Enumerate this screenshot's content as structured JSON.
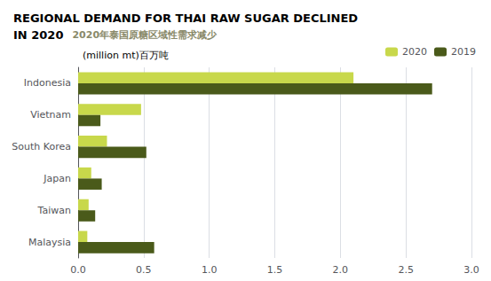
{
  "chart_data": {
    "type": "bar",
    "orientation": "horizontal",
    "title": "REGIONAL DEMAND FOR THAI RAW SUGAR DECLINED\nIN 2020",
    "subtitle": "(million mt)百万吨",
    "annotations": [
      {
        "text": "2020年泰国原糖区域性需求减少",
        "color": "#8a8a6a"
      }
    ],
    "categories": [
      "Indonesia",
      "Vietnam",
      "South Korea",
      "Japan",
      "Taiwan",
      "Malaysia"
    ],
    "series": [
      {
        "name": "2020",
        "color": "#c8d84b",
        "values": [
          2.1,
          0.48,
          0.22,
          0.1,
          0.08,
          0.07
        ]
      },
      {
        "name": "2019",
        "color": "#4a5a1a",
        "values": [
          2.7,
          0.17,
          0.52,
          0.18,
          0.13,
          0.58
        ]
      }
    ],
    "xlim": [
      0,
      3.0
    ],
    "xticks": [
      {
        "value": 0,
        "label": "0.0"
      },
      0.5,
      {
        "value": 1.0,
        "label": "1.0"
      },
      1.5,
      {
        "value": 2.0,
        "label": "2.0"
      },
      2.5,
      {
        "value": 3.0,
        "label": "3.0"
      }
    ],
    "grid": true,
    "legend": "upper right"
  }
}
